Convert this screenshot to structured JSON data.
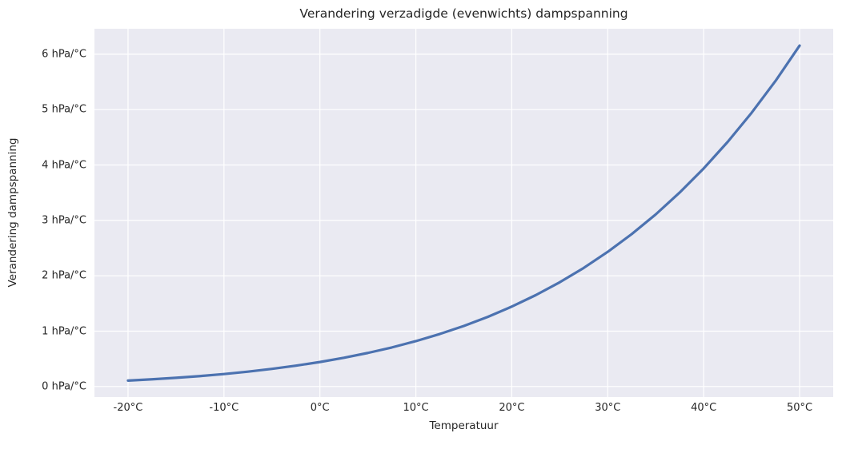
{
  "figure": {
    "background": "#ffffff",
    "plot_background": "#eaeaf2",
    "grid_color": "#ffffff",
    "text_color": "#262626",
    "line_color": "#4c72b0",
    "line_width": 3.2
  },
  "chart_data": {
    "type": "line",
    "title": "Verandering verzadigde (evenwichts) dampspanning",
    "xlabel": "Temperatuur",
    "ylabel": "Verandering dampspanning",
    "grid": true,
    "legend_position": "none",
    "xlim": [
      -23.5,
      53.5
    ],
    "ylim": [
      -0.19,
      6.46
    ],
    "x": [
      -20,
      -17.5,
      -15,
      -12.5,
      -10,
      -7.5,
      -5,
      -2.5,
      0,
      2.5,
      5,
      7.5,
      10,
      12.5,
      15,
      17.5,
      20,
      22.5,
      25,
      27.5,
      30,
      32.5,
      35,
      37.5,
      40,
      42.5,
      45,
      47.5,
      50
    ],
    "y": [
      0.108,
      0.131,
      0.158,
      0.189,
      0.226,
      0.269,
      0.319,
      0.377,
      0.443,
      0.519,
      0.607,
      0.706,
      0.82,
      0.949,
      1.094,
      1.258,
      1.444,
      1.651,
      1.883,
      2.142,
      2.432,
      2.753,
      3.108,
      3.503,
      3.938,
      4.417,
      4.944,
      5.521,
      6.156
    ],
    "x_ticks": [
      {
        "value": -20,
        "label": "-20°C"
      },
      {
        "value": -10,
        "label": "-10°C"
      },
      {
        "value": 0,
        "label": "0°C"
      },
      {
        "value": 10,
        "label": "10°C"
      },
      {
        "value": 20,
        "label": "20°C"
      },
      {
        "value": 30,
        "label": "30°C"
      },
      {
        "value": 40,
        "label": "40°C"
      },
      {
        "value": 50,
        "label": "50°C"
      }
    ],
    "y_ticks": [
      {
        "value": 0,
        "label": "0 hPa/°C"
      },
      {
        "value": 1,
        "label": "1 hPa/°C"
      },
      {
        "value": 2,
        "label": "2 hPa/°C"
      },
      {
        "value": 3,
        "label": "3 hPa/°C"
      },
      {
        "value": 4,
        "label": "4 hPa/°C"
      },
      {
        "value": 5,
        "label": "5 hPa/°C"
      },
      {
        "value": 6,
        "label": "6 hPa/°C"
      }
    ]
  }
}
